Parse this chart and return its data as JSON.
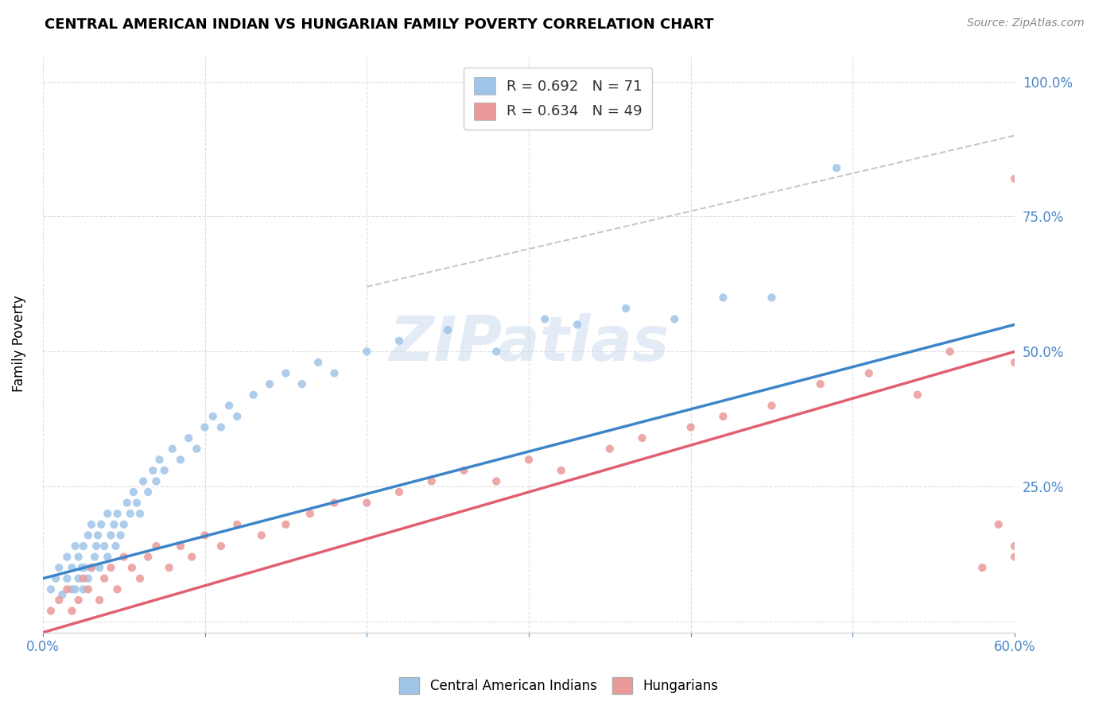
{
  "title": "CENTRAL AMERICAN INDIAN VS HUNGARIAN FAMILY POVERTY CORRELATION CHART",
  "source": "Source: ZipAtlas.com",
  "ylabel": "Family Poverty",
  "xlim": [
    0.0,
    0.6
  ],
  "ylim": [
    -0.02,
    1.05
  ],
  "xticks": [
    0.0,
    0.1,
    0.2,
    0.3,
    0.4,
    0.5,
    0.6
  ],
  "xticklabels": [
    "0.0%",
    "",
    "",
    "",
    "",
    "",
    "60.0%"
  ],
  "yticks": [
    0.0,
    0.25,
    0.5,
    0.75,
    1.0
  ],
  "yticklabels_right": [
    "",
    "25.0%",
    "50.0%",
    "75.0%",
    "100.0%"
  ],
  "color_blue": "#9fc5e8",
  "color_pink": "#ea9999",
  "color_blue_line": "#3d85c8",
  "color_pink_line": "#e06070",
  "color_dashed": "#bbbbbb",
  "R_blue": 0.692,
  "N_blue": 71,
  "R_pink": 0.634,
  "N_pink": 49,
  "watermark": "ZIPatlas",
  "blue_scatter_x": [
    0.005,
    0.008,
    0.01,
    0.012,
    0.015,
    0.015,
    0.018,
    0.018,
    0.02,
    0.02,
    0.022,
    0.022,
    0.024,
    0.025,
    0.025,
    0.026,
    0.028,
    0.028,
    0.03,
    0.03,
    0.032,
    0.033,
    0.034,
    0.035,
    0.036,
    0.038,
    0.04,
    0.04,
    0.042,
    0.044,
    0.045,
    0.046,
    0.048,
    0.05,
    0.052,
    0.054,
    0.056,
    0.058,
    0.06,
    0.062,
    0.065,
    0.068,
    0.07,
    0.072,
    0.075,
    0.08,
    0.085,
    0.09,
    0.095,
    0.1,
    0.105,
    0.11,
    0.115,
    0.12,
    0.13,
    0.14,
    0.15,
    0.16,
    0.17,
    0.18,
    0.2,
    0.22,
    0.25,
    0.28,
    0.31,
    0.33,
    0.36,
    0.39,
    0.42,
    0.45,
    0.49
  ],
  "blue_scatter_y": [
    0.06,
    0.08,
    0.1,
    0.05,
    0.08,
    0.12,
    0.06,
    0.1,
    0.06,
    0.14,
    0.08,
    0.12,
    0.1,
    0.06,
    0.14,
    0.1,
    0.08,
    0.16,
    0.1,
    0.18,
    0.12,
    0.14,
    0.16,
    0.1,
    0.18,
    0.14,
    0.12,
    0.2,
    0.16,
    0.18,
    0.14,
    0.2,
    0.16,
    0.18,
    0.22,
    0.2,
    0.24,
    0.22,
    0.2,
    0.26,
    0.24,
    0.28,
    0.26,
    0.3,
    0.28,
    0.32,
    0.3,
    0.34,
    0.32,
    0.36,
    0.38,
    0.36,
    0.4,
    0.38,
    0.42,
    0.44,
    0.46,
    0.44,
    0.48,
    0.46,
    0.5,
    0.52,
    0.54,
    0.5,
    0.56,
    0.55,
    0.58,
    0.56,
    0.6,
    0.6,
    0.84
  ],
  "pink_scatter_x": [
    0.005,
    0.01,
    0.015,
    0.018,
    0.022,
    0.025,
    0.028,
    0.03,
    0.035,
    0.038,
    0.042,
    0.046,
    0.05,
    0.055,
    0.06,
    0.065,
    0.07,
    0.078,
    0.085,
    0.092,
    0.1,
    0.11,
    0.12,
    0.135,
    0.15,
    0.165,
    0.18,
    0.2,
    0.22,
    0.24,
    0.26,
    0.28,
    0.3,
    0.32,
    0.35,
    0.37,
    0.4,
    0.42,
    0.45,
    0.48,
    0.51,
    0.54,
    0.56,
    0.58,
    0.59,
    0.6,
    0.6,
    0.6,
    0.6
  ],
  "pink_scatter_y": [
    0.02,
    0.04,
    0.06,
    0.02,
    0.04,
    0.08,
    0.06,
    0.1,
    0.04,
    0.08,
    0.1,
    0.06,
    0.12,
    0.1,
    0.08,
    0.12,
    0.14,
    0.1,
    0.14,
    0.12,
    0.16,
    0.14,
    0.18,
    0.16,
    0.18,
    0.2,
    0.22,
    0.22,
    0.24,
    0.26,
    0.28,
    0.26,
    0.3,
    0.28,
    0.32,
    0.34,
    0.36,
    0.38,
    0.4,
    0.44,
    0.46,
    0.42,
    0.5,
    0.1,
    0.18,
    0.12,
    0.48,
    0.14,
    0.82
  ],
  "legend_label_blue": "R = 0.692   N = 71",
  "legend_label_pink": "R = 0.634   N = 49",
  "bottom_legend_labels": [
    "Central American Indians",
    "Hungarians"
  ]
}
